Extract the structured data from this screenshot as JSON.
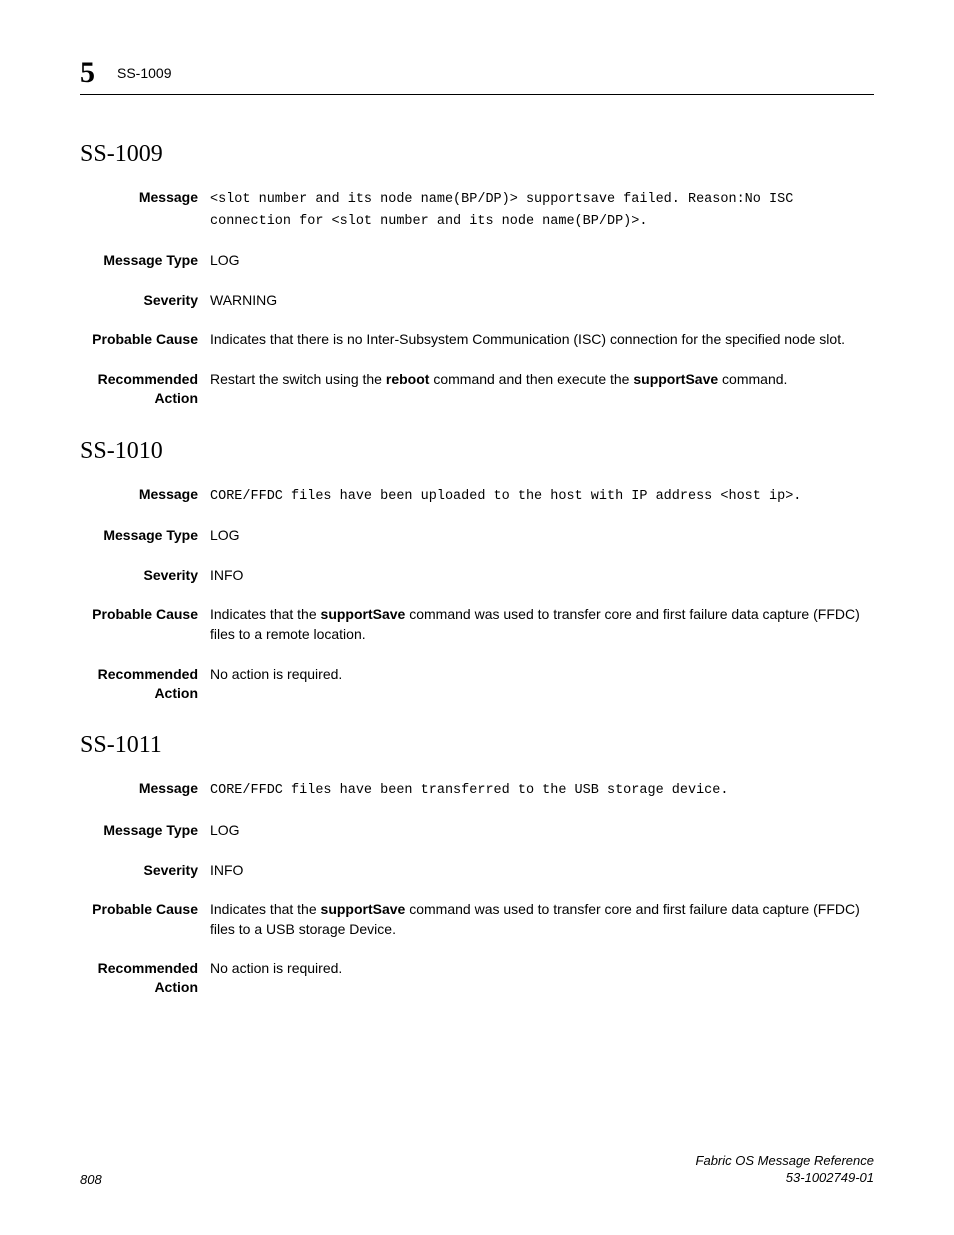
{
  "header": {
    "chapter_number": "5",
    "code": "SS-1009"
  },
  "labels": {
    "message": "Message",
    "message_type": "Message Type",
    "severity": "Severity",
    "probable_cause": "Probable Cause",
    "recommended_action_l1": "Recommended",
    "recommended_action_l2": "Action"
  },
  "sections": [
    {
      "title": "SS-1009",
      "message_segments": [
        {
          "t": "<slot number and its node name(BP/DP)> supportsave failed. Reason:No ISC connection for <slot number and its node name(BP/DP)>.",
          "mono": true
        }
      ],
      "message_type": "LOG",
      "severity": "WARNING",
      "probable_cause_segments": [
        {
          "t": "Indicates that there is no Inter-Subsystem Communication (ISC) connection for the specified node slot."
        }
      ],
      "recommended_action_segments": [
        {
          "t": "Restart the switch using the "
        },
        {
          "t": "reboot",
          "b": true
        },
        {
          "t": " command and then execute the "
        },
        {
          "t": "supportSave",
          "b": true
        },
        {
          "t": " command."
        }
      ]
    },
    {
      "title": "SS-1010",
      "message_segments": [
        {
          "t": "CORE/FFDC files have been uploaded to the host with IP address <host ip>.",
          "mono": true
        }
      ],
      "message_type": "LOG",
      "severity": "INFO",
      "probable_cause_segments": [
        {
          "t": "Indicates that the "
        },
        {
          "t": "supportSave",
          "b": true
        },
        {
          "t": " command was used to transfer core and first failure data capture (FFDC) files to a remote location."
        }
      ],
      "recommended_action_segments": [
        {
          "t": "No action is required."
        }
      ]
    },
    {
      "title": "SS-1011",
      "message_segments": [
        {
          "t": "CORE/FFDC files have been transferred to the USB storage device.",
          "mono": true
        }
      ],
      "message_type": "LOG",
      "severity": "INFO",
      "probable_cause_segments": [
        {
          "t": "Indicates that the "
        },
        {
          "t": "supportSave",
          "b": true
        },
        {
          "t": " command was used to transfer core and first failure data capture (FFDC) files to a USB storage Device."
        }
      ],
      "recommended_action_segments": [
        {
          "t": "No action is required."
        }
      ]
    }
  ],
  "footer": {
    "page_number": "808",
    "doc_title": "Fabric OS Message Reference",
    "doc_id": "53-1002749-01"
  }
}
